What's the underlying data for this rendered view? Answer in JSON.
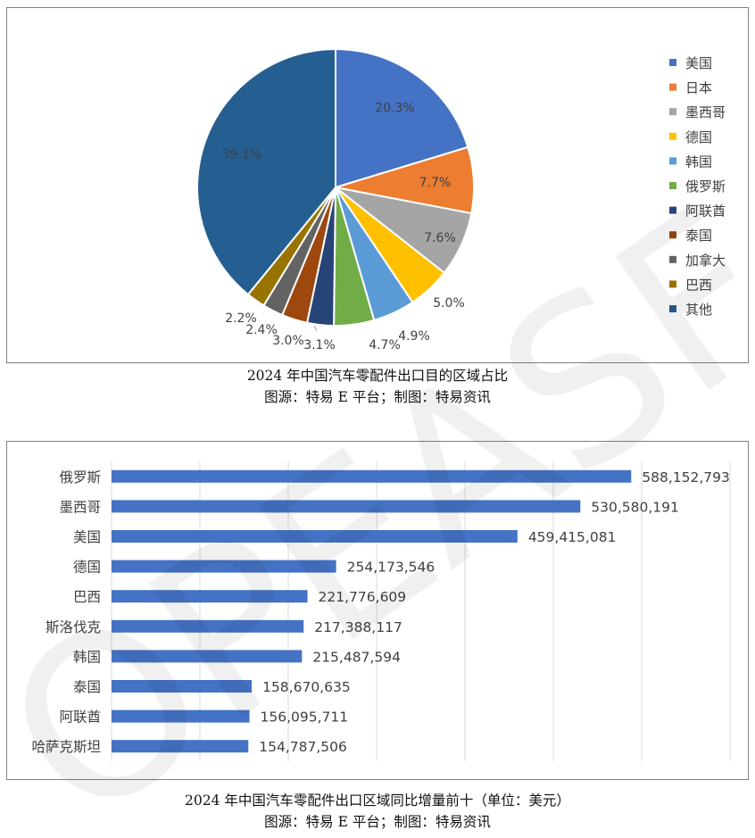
{
  "chart_data": [
    {
      "type": "pie",
      "title": "2024 年中国汽车零配件出口目的区域占比",
      "source": "图源：特易 E 平台；制图：特易资讯",
      "slices": [
        {
          "label": "美国",
          "value": 20.3,
          "display": "20.3%",
          "color": "#4472c4"
        },
        {
          "label": "日本",
          "value": 7.7,
          "display": "7.7%",
          "color": "#ed7d31"
        },
        {
          "label": "墨西哥",
          "value": 7.6,
          "display": "7.6%",
          "color": "#a5a5a5"
        },
        {
          "label": "德国",
          "value": 5.0,
          "display": "5.0%",
          "color": "#ffc000"
        },
        {
          "label": "韩国",
          "value": 4.9,
          "display": "4.9%",
          "color": "#5b9bd5"
        },
        {
          "label": "俄罗斯",
          "value": 4.7,
          "display": "4.7%",
          "color": "#70ad47"
        },
        {
          "label": "阿联酋",
          "value": 3.1,
          "display": "3.1%",
          "color": "#264478"
        },
        {
          "label": "泰国",
          "value": 3.0,
          "display": "3.0%",
          "color": "#9e480e"
        },
        {
          "label": "加拿大",
          "value": 2.4,
          "display": "2.4%",
          "color": "#636363"
        },
        {
          "label": "巴西",
          "value": 2.2,
          "display": "2.2%",
          "color": "#997300"
        },
        {
          "label": "其他",
          "value": 39.1,
          "display": "39.1%",
          "color": "#255e91"
        }
      ],
      "legend": "right"
    },
    {
      "type": "bar",
      "orientation": "horizontal",
      "title": "2024 年中国汽车零配件出口区域同比增量前十（单位：美元）",
      "source": "图源：特易 E 平台；制图：特易资讯",
      "categories": [
        "俄罗斯",
        "墨西哥",
        "美国",
        "德国",
        "巴西",
        "斯洛伐克",
        "韩国",
        "泰国",
        "阿联酋",
        "哈萨克斯坦"
      ],
      "values": [
        588152793,
        530580191,
        459415081,
        254173546,
        221776609,
        217388117,
        215487594,
        158670635,
        156095711,
        154787506
      ],
      "labels": [
        "588,152,793",
        "530,580,191",
        "459,415,081",
        "254,173,546",
        "221,776,609",
        "217,388,117",
        "215,487,594",
        "158,670,635",
        "156,095,711",
        "154,787,506"
      ],
      "xlim": [
        0,
        700000000
      ],
      "grid": true,
      "bar_color": "#4472c4"
    }
  ],
  "watermark": "OPEASF"
}
